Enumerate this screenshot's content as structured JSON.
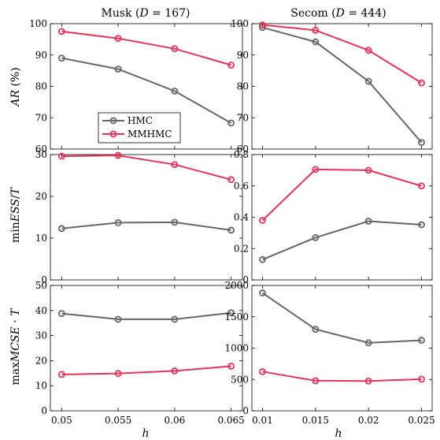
{
  "colors": {
    "HMC": "#666666",
    "MMHMC": "#e8315b"
  },
  "legend": {
    "entries": [
      "HMC",
      "MMHMC"
    ],
    "placement": "inside bottom-left of top-left panel"
  },
  "chart_data": [
    {
      "type": "line",
      "panel": "top-left",
      "title": "Musk (D = 167)",
      "ylabel": "AR (%)",
      "x": [
        0.05,
        0.055,
        0.06,
        0.065
      ],
      "xlim": [
        0.049,
        0.066
      ],
      "ylim": [
        60,
        100
      ],
      "xticks": [
        "0.05",
        "0.055",
        "0.06",
        "0.065"
      ],
      "yticks": [
        "60",
        "70",
        "80",
        "90",
        "100"
      ],
      "series": [
        {
          "name": "HMC",
          "values": [
            89,
            85.5,
            78.5,
            68.3
          ]
        },
        {
          "name": "MMHMC",
          "values": [
            97.5,
            95.3,
            92,
            86.8
          ]
        }
      ]
    },
    {
      "type": "line",
      "panel": "top-right",
      "title": "Secom (D = 444)",
      "x": [
        0.01,
        0.015,
        0.02,
        0.025
      ],
      "xlim": [
        0.009,
        0.026
      ],
      "ylim": [
        60,
        100
      ],
      "xticks": [
        "0.01",
        "0.015",
        "0.02",
        "0.025"
      ],
      "yticks": [
        "60",
        "70",
        "80",
        "90",
        "100"
      ],
      "series": [
        {
          "name": "HMC",
          "values": [
            98.8,
            94.2,
            81.6,
            62.1
          ]
        },
        {
          "name": "MMHMC",
          "values": [
            99.6,
            97.9,
            91.5,
            81.1
          ]
        }
      ]
    },
    {
      "type": "line",
      "panel": "middle-left",
      "ylabel": "minESS/T",
      "x": [
        0.05,
        0.055,
        0.06,
        0.065
      ],
      "xlim": [
        0.049,
        0.066
      ],
      "ylim": [
        0,
        30
      ],
      "xticks": [
        "0.05",
        "0.055",
        "0.06",
        "0.065"
      ],
      "yticks": [
        "0",
        "10",
        "20",
        "30"
      ],
      "series": [
        {
          "name": "HMC",
          "values": [
            12.3,
            13.7,
            13.8,
            11.9
          ]
        },
        {
          "name": "MMHMC",
          "values": [
            29.6,
            29.8,
            27.6,
            24
          ]
        }
      ]
    },
    {
      "type": "line",
      "panel": "middle-right",
      "x": [
        0.01,
        0.015,
        0.02,
        0.025
      ],
      "xlim": [
        0.009,
        0.026
      ],
      "ylim": [
        0,
        0.8
      ],
      "xticks": [
        "0.01",
        "0.015",
        "0.02",
        "0.025"
      ],
      "yticks": [
        "0",
        "0.2",
        "0.4",
        "0.6",
        "0.8"
      ],
      "series": [
        {
          "name": "HMC",
          "values": [
            0.13,
            0.27,
            0.375,
            0.352
          ]
        },
        {
          "name": "MMHMC",
          "values": [
            0.38,
            0.705,
            0.7,
            0.6
          ]
        }
      ]
    },
    {
      "type": "line",
      "panel": "bottom-left",
      "ylabel": "maxMCSE · T",
      "xlabel": "h",
      "x": [
        0.05,
        0.055,
        0.06,
        0.065
      ],
      "xlim": [
        0.049,
        0.066
      ],
      "ylim": [
        0,
        50
      ],
      "xticks": [
        "0.05",
        "0.055",
        "0.06",
        "0.065"
      ],
      "yticks": [
        "0",
        "10",
        "20",
        "30",
        "40",
        "50"
      ],
      "series": [
        {
          "name": "HMC",
          "values": [
            38.8,
            36.5,
            36.5,
            39.1
          ]
        },
        {
          "name": "MMHMC",
          "values": [
            14.5,
            14.9,
            15.9,
            17.8
          ]
        }
      ]
    },
    {
      "type": "line",
      "panel": "bottom-right",
      "xlabel": "h",
      "x": [
        0.01,
        0.015,
        0.02,
        0.025
      ],
      "xlim": [
        0.009,
        0.026
      ],
      "ylim": [
        0,
        2000
      ],
      "xticks": [
        "0.01",
        "0.015",
        "0.02",
        "0.025"
      ],
      "yticks": [
        "0",
        "500",
        "1000",
        "1500",
        "2000"
      ],
      "series": [
        {
          "name": "HMC",
          "values": [
            1880,
            1300,
            1085,
            1125
          ]
        },
        {
          "name": "MMHMC",
          "values": [
            625,
            480,
            475,
            505
          ]
        }
      ]
    }
  ]
}
